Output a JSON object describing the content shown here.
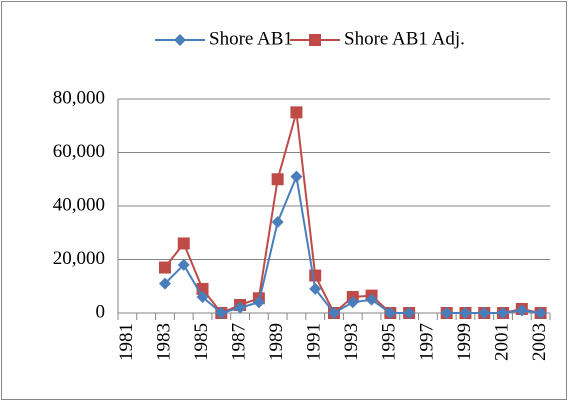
{
  "chart_data": {
    "type": "line",
    "categories": [
      "1981",
      null,
      "1983",
      null,
      "1985",
      null,
      "1987",
      null,
      "1989",
      null,
      "1991",
      null,
      "1993",
      null,
      "1995",
      null,
      "1997",
      null,
      "1999",
      null,
      "2001",
      null,
      "2003"
    ],
    "series": [
      {
        "name": "Shore AB1",
        "color": "#4a7ebb",
        "marker": "diamond",
        "values": [
          null,
          null,
          11000,
          18000,
          6000,
          0,
          2000,
          4000,
          34000,
          51000,
          9000,
          0,
          4000,
          5000,
          0,
          0,
          null,
          0,
          0,
          0,
          0,
          1000,
          0
        ]
      },
      {
        "name": "Shore AB1 Adj.",
        "color": "#be4b48",
        "marker": "square",
        "values": [
          null,
          null,
          17000,
          26000,
          9000,
          0,
          3000,
          5500,
          50000,
          75000,
          14000,
          0,
          6000,
          6500,
          0,
          0,
          null,
          0,
          0,
          0,
          0,
          1500,
          0
        ]
      }
    ],
    "ylim": [
      0,
      80000
    ],
    "yticks": [
      0,
      {
        "value": 20000,
        "label": "20,000"
      },
      {
        "value": 40000,
        "label": "40,000"
      },
      {
        "value": 60000,
        "label": "60,000"
      },
      {
        "value": 80000,
        "label": "80,000"
      }
    ],
    "grid": true,
    "legend": "top"
  }
}
